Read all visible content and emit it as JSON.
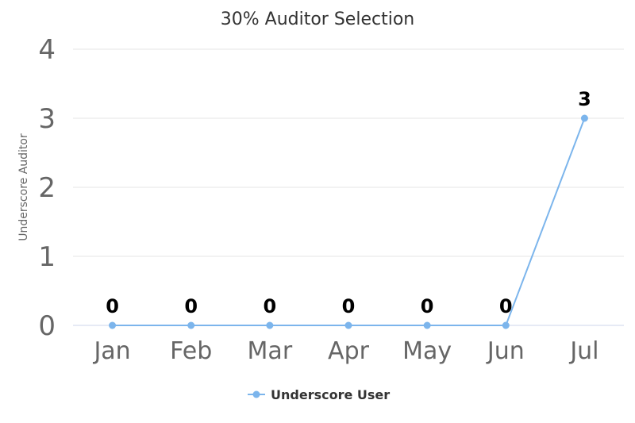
{
  "chart_data": {
    "type": "line",
    "title": "30% Auditor Selection",
    "xlabel": "",
    "ylabel": "Underscore Auditor",
    "categories": [
      "Jan",
      "Feb",
      "Mar",
      "Apr",
      "May",
      "Jun",
      "Jul"
    ],
    "ylim": [
      0,
      4
    ],
    "yticks": [
      0,
      1,
      2,
      3,
      4
    ],
    "grid": true,
    "legend_position": "bottom-center",
    "series": [
      {
        "name": "Underscore User",
        "values": [
          0,
          0,
          0,
          0,
          0,
          0,
          3
        ],
        "color": "#7cb5ec"
      }
    ]
  }
}
